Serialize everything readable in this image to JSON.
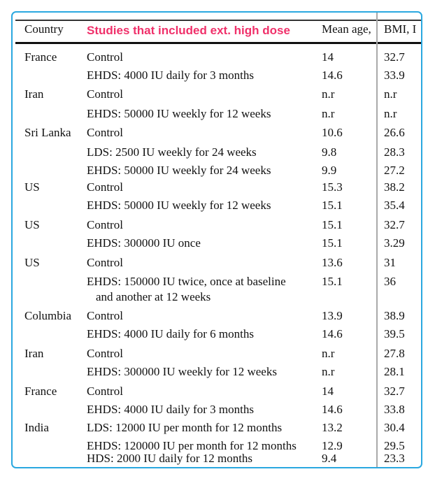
{
  "header": {
    "country": "Country",
    "intervention": "Studies that included ext. high dose",
    "mean_age": "Mean age,",
    "bmi": "BMI, I"
  },
  "highlight_color": "#f0306a",
  "border_color": "#2aa8e0",
  "rows": [
    {
      "country": "France",
      "intervention": "Control",
      "age": "14",
      "bmi": "32.7"
    },
    {
      "country": "",
      "intervention": "EHDS: 4000 IU daily for 3 months",
      "age": "14.6",
      "bmi": "33.9"
    },
    {
      "country": "Iran",
      "intervention": "Control",
      "age": "n.r",
      "bmi": "n.r"
    },
    {
      "country": "",
      "intervention": "EHDS: 50000 IU weekly for 12 weeks",
      "age": "n.r",
      "bmi": "n.r"
    },
    {
      "country": "Sri Lanka",
      "intervention": "Control",
      "age": "10.6",
      "bmi": "26.6"
    },
    {
      "country": "",
      "intervention": "LDS: 2500 IU weekly for 24 weeks",
      "age": "9.8",
      "bmi": "28.3"
    },
    {
      "country": "",
      "intervention": "EHDS: 50000 IU weekly for 24 weeks",
      "age": "9.9",
      "bmi": "27.2"
    },
    {
      "country": "US",
      "intervention": "Control",
      "age": "15.3",
      "bmi": "38.2"
    },
    {
      "country": "",
      "intervention": "EHDS: 50000 IU weekly for 12 weeks",
      "age": "15.1",
      "bmi": "35.4"
    },
    {
      "country": "US",
      "intervention": "Control",
      "age": "15.1",
      "bmi": "32.7"
    },
    {
      "country": "",
      "intervention": "EHDS: 300000 IU once",
      "age": "15.1",
      "bmi": "3.29"
    },
    {
      "country": "US",
      "intervention": "Control",
      "age": "13.6",
      "bmi": "31"
    },
    {
      "country": "",
      "intervention": "EHDS: 150000 IU twice, once at baseline",
      "intervention2": "and another at 12 weeks",
      "age": "15.1",
      "bmi": "36"
    },
    {
      "country": "Columbia",
      "intervention": "Control",
      "age": "13.9",
      "bmi": "38.9"
    },
    {
      "country": "",
      "intervention": "EHDS: 4000 IU daily for 6 months",
      "age": "14.6",
      "bmi": "39.5"
    },
    {
      "country": "Iran",
      "intervention": "Control",
      "age": "n.r",
      "bmi": "27.8"
    },
    {
      "country": "",
      "intervention": "EHDS: 300000 IU weekly for 12 weeks",
      "age": "n.r",
      "bmi": "28.1"
    },
    {
      "country": "France",
      "intervention": "Control",
      "age": "14",
      "bmi": "32.7"
    },
    {
      "country": "",
      "intervention": "EHDS: 4000 IU daily for 3 months",
      "age": "14.6",
      "bmi": "33.8"
    },
    {
      "country": "India",
      "intervention": "LDS: 12000 IU per month for 12 months",
      "age": "13.2",
      "bmi": "30.4"
    },
    {
      "country": "",
      "intervention": "EHDS: 120000 IU per month for 12 months",
      "age": "12.9",
      "bmi": "29.5"
    },
    {
      "country": "",
      "intervention": "HDS: 2000 IU daily for 12 months",
      "age": "9.4",
      "bmi": "23.3"
    }
  ]
}
